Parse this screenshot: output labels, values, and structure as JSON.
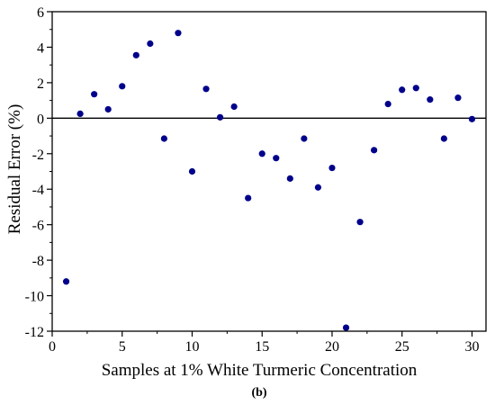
{
  "chart_data": {
    "type": "scatter",
    "xlabel": "Samples at 1% White Turmeric Concentration",
    "ylabel": "Residual Error (%)",
    "caption": "(b)",
    "xlim": [
      0,
      31
    ],
    "ylim": [
      -12,
      6
    ],
    "xticks": [
      0,
      5,
      10,
      15,
      20,
      25,
      30
    ],
    "yticks": [
      6,
      4,
      2,
      0,
      -2,
      -4,
      -6,
      -8,
      -10,
      -12
    ],
    "reference_line_y": 0,
    "marker_color": "#00008b",
    "series": [
      {
        "x": [
          1,
          2,
          3,
          4,
          5,
          6,
          7,
          8,
          9,
          10,
          11,
          12,
          13,
          14,
          15,
          16,
          17,
          18,
          19,
          20,
          21,
          22,
          23,
          24,
          25,
          26,
          27,
          28,
          29,
          30
        ],
        "values": [
          -9.2,
          0.25,
          1.35,
          0.5,
          1.8,
          3.55,
          4.2,
          -1.15,
          4.8,
          -3.0,
          1.65,
          0.05,
          0.65,
          -4.5,
          -2.0,
          -2.25,
          -3.4,
          -1.15,
          -3.9,
          -2.8,
          -11.8,
          -5.85,
          -1.8,
          0.8,
          1.6,
          1.7,
          1.05,
          -1.15,
          1.15,
          -0.05
        ]
      }
    ]
  }
}
